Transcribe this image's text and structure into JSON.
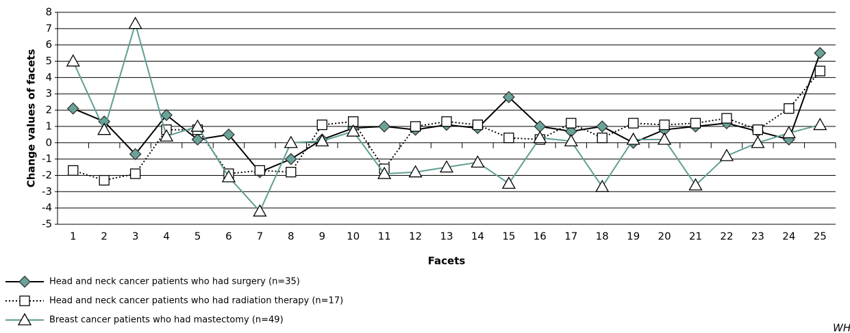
{
  "chart_data": {
    "type": "line",
    "x_label": "Facets",
    "y_label": "Change values of facets",
    "source": "WHO",
    "x": [
      1,
      2,
      3,
      4,
      5,
      6,
      7,
      8,
      9,
      10,
      11,
      12,
      13,
      14,
      15,
      16,
      17,
      18,
      19,
      20,
      21,
      22,
      23,
      24,
      25
    ],
    "xlim": [
      0.5,
      25.5
    ],
    "xticks": [
      1,
      2,
      3,
      4,
      5,
      6,
      7,
      8,
      9,
      10,
      11,
      12,
      13,
      14,
      15,
      16,
      17,
      18,
      19,
      20,
      21,
      22,
      23,
      24,
      25
    ],
    "ylim": [
      -5,
      8
    ],
    "yticks": [
      -5,
      -4,
      -3,
      -2,
      -1,
      0,
      1,
      2,
      3,
      4,
      5,
      6,
      7,
      8
    ],
    "grid": true,
    "legend": "bottom-left",
    "series": [
      {
        "name": "Head and neck cancer patients who had surgery (n=35)",
        "color": "#000000",
        "marker": "diamond",
        "marker_fill": "#6aa39a",
        "line_style": "solid",
        "values": [
          2.1,
          1.3,
          -0.7,
          1.7,
          0.2,
          0.5,
          -1.8,
          -1.0,
          0.2,
          0.9,
          1.0,
          0.8,
          1.1,
          0.9,
          2.8,
          1.0,
          0.7,
          1.0,
          0.0,
          0.8,
          1.0,
          1.2,
          0.7,
          0.2,
          5.5
        ]
      },
      {
        "name": "Head and neck cancer patients who had radiation therapy (n=17)",
        "color": "#000000",
        "marker": "square",
        "marker_fill": "#ffffff",
        "line_style": "dotted",
        "values": [
          -1.7,
          -2.3,
          -1.9,
          0.8,
          0.8,
          -1.9,
          -1.7,
          -1.8,
          1.1,
          1.3,
          -1.6,
          1.0,
          1.3,
          1.1,
          0.3,
          0.2,
          1.2,
          0.3,
          1.2,
          1.1,
          1.2,
          1.5,
          0.8,
          2.1,
          4.4
        ]
      },
      {
        "name": "Breast cancer patients who had mastectomy (n=49)",
        "color": "#5f9e94",
        "marker": "triangle",
        "marker_fill": "#ffffff",
        "line_style": "solid",
        "values": [
          5.0,
          0.8,
          7.3,
          0.4,
          1.0,
          -2.1,
          -4.2,
          0.0,
          0.1,
          0.7,
          -1.9,
          -1.8,
          -1.5,
          -1.2,
          -2.5,
          0.3,
          0.1,
          -2.7,
          0.2,
          0.2,
          -2.6,
          -0.8,
          0.0,
          0.6,
          1.1
        ]
      }
    ]
  }
}
